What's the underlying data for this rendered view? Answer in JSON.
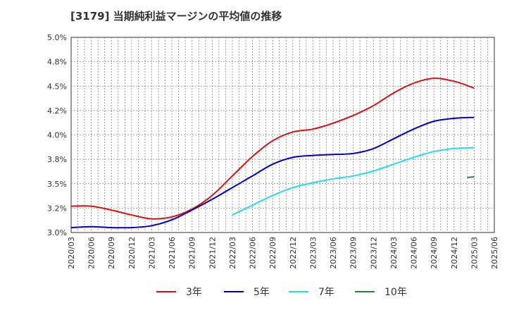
{
  "chart_data": {
    "type": "line",
    "title": "[3179]  当期純利益マージンの平均値の推移",
    "xlabel": "",
    "ylabel": "",
    "x": [
      "2020/03",
      "2020/06",
      "2020/09",
      "2020/12",
      "2021/03",
      "2021/06",
      "2021/09",
      "2021/12",
      "2022/03",
      "2022/06",
      "2022/09",
      "2022/12",
      "2023/03",
      "2023/06",
      "2023/09",
      "2023/12",
      "2024/03",
      "2024/06",
      "2024/09",
      "2024/12",
      "2025/03",
      "2025/06"
    ],
    "ylim": [
      3.0,
      5.0
    ],
    "yticks": [
      "3.0%",
      "3.2%",
      "3.5%",
      "3.8%",
      "4.0%",
      "4.2%",
      "4.5%",
      "4.8%",
      "5.0%"
    ],
    "grid": true,
    "legend_position": "bottom",
    "series": [
      {
        "name": "3年",
        "color": "#dd1111",
        "values": [
          3.27,
          3.27,
          3.23,
          3.18,
          3.14,
          3.16,
          3.24,
          3.38,
          3.58,
          3.78,
          3.94,
          4.03,
          4.06,
          4.12,
          4.2,
          4.3,
          4.43,
          4.53,
          4.58,
          4.55,
          4.48,
          null
        ]
      },
      {
        "name": "5年",
        "color": "#0000cc",
        "values": [
          3.05,
          3.06,
          3.05,
          3.05,
          3.07,
          3.13,
          3.23,
          3.34,
          3.46,
          3.58,
          3.7,
          3.77,
          3.79,
          3.8,
          3.81,
          3.86,
          3.96,
          4.06,
          4.14,
          4.17,
          4.18,
          null
        ]
      },
      {
        "name": "7年",
        "color": "#22ddee",
        "values": [
          null,
          null,
          null,
          null,
          null,
          null,
          null,
          null,
          3.18,
          3.28,
          3.38,
          3.46,
          3.51,
          3.55,
          3.58,
          3.63,
          3.7,
          3.77,
          3.83,
          3.86,
          3.87,
          null
        ]
      },
      {
        "name": "10年",
        "color": "#228833",
        "values": [
          null,
          null,
          null,
          null,
          null,
          null,
          null,
          null,
          null,
          null,
          null,
          null,
          null,
          null,
          null,
          null,
          null,
          null,
          null,
          null,
          3.57,
          null
        ]
      }
    ]
  }
}
